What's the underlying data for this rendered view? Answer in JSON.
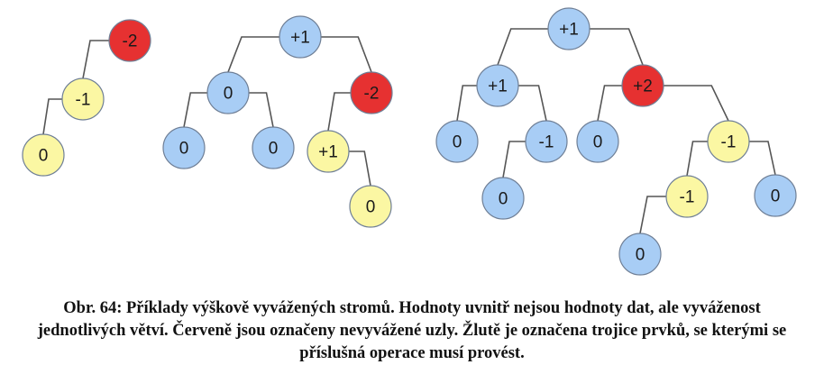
{
  "colors": {
    "blue": "#a8cdf5",
    "yellow": "#fbf7a3",
    "red": "#e63131",
    "edge": "#555555"
  },
  "trees": [
    {
      "id": "tree-1",
      "nodes": [
        {
          "id": "a",
          "label": "-2",
          "color": "red",
          "parent": null
        },
        {
          "id": "b",
          "label": "-1",
          "color": "yellow",
          "parent": "a"
        },
        {
          "id": "c",
          "label": "0",
          "color": "yellow",
          "parent": "b"
        }
      ]
    },
    {
      "id": "tree-2",
      "nodes": [
        {
          "id": "a",
          "label": "+1",
          "color": "blue",
          "parent": null
        },
        {
          "id": "b",
          "label": "0",
          "color": "blue",
          "parent": "a"
        },
        {
          "id": "c",
          "label": "-2",
          "color": "red",
          "parent": "a"
        },
        {
          "id": "d",
          "label": "0",
          "color": "blue",
          "parent": "b"
        },
        {
          "id": "e",
          "label": "0",
          "color": "blue",
          "parent": "b"
        },
        {
          "id": "f",
          "label": "+1",
          "color": "yellow",
          "parent": "c"
        },
        {
          "id": "g",
          "label": "0",
          "color": "yellow",
          "parent": "f"
        }
      ]
    },
    {
      "id": "tree-3",
      "nodes": [
        {
          "id": "a",
          "label": "+1",
          "color": "blue",
          "parent": null
        },
        {
          "id": "b",
          "label": "+1",
          "color": "blue",
          "parent": "a"
        },
        {
          "id": "c",
          "label": "+2",
          "color": "red",
          "parent": "a"
        },
        {
          "id": "d",
          "label": "0",
          "color": "blue",
          "parent": "b"
        },
        {
          "id": "e",
          "label": "-1",
          "color": "blue",
          "parent": "b"
        },
        {
          "id": "f",
          "label": "0",
          "color": "blue",
          "parent": "e"
        },
        {
          "id": "g",
          "label": "0",
          "color": "blue",
          "parent": "c"
        },
        {
          "id": "h",
          "label": "-1",
          "color": "yellow",
          "parent": "c"
        },
        {
          "id": "i",
          "label": "-1",
          "color": "yellow",
          "parent": "h"
        },
        {
          "id": "j",
          "label": "0",
          "color": "blue",
          "parent": "h"
        },
        {
          "id": "k",
          "label": "0",
          "color": "blue",
          "parent": "i"
        }
      ]
    }
  ],
  "caption": {
    "line1": "Obr. 64: Příklady výškově vyvážených stromů. Hodnoty uvnitř nejsou hodnoty dat, ale vyváženost",
    "line2": "jednotlivých větví. Červeně jsou označeny nevyvážené uzly. Žlutě je označena trojice prvků, se kterými se",
    "line3": "příslušná operace musí provést."
  }
}
